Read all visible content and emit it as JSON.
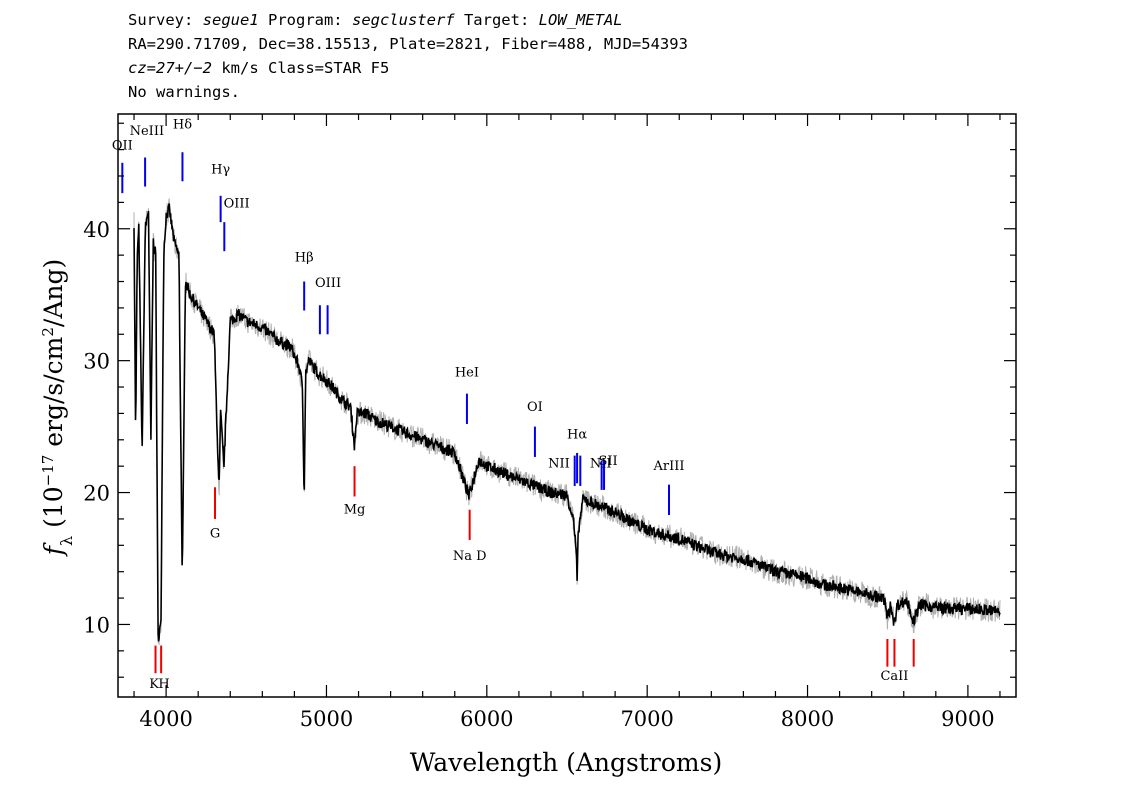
{
  "header": {
    "line1": {
      "survey_label": "Survey: ",
      "survey": "segue1",
      "program_label": " Program: ",
      "program": "segclusterf",
      "target_label": " Target: ",
      "target": "LOW_METAL"
    },
    "line2": "RA=290.71709, Dec=38.15513, Plate=2821, Fiber=488, MJD=54393",
    "line3": {
      "cz": "cz=27+/−2",
      "rest": " km/s Class=STAR F5"
    },
    "line4": "No warnings."
  },
  "colors": {
    "spectrum": "#000000",
    "error": "#b0b0b0",
    "emission": "#0000ee",
    "absorption": "#ee0000"
  },
  "chart_data": {
    "type": "line",
    "xlabel": "Wavelength (Angstroms)",
    "ylabel": "f_λ (10^-17 erg/s/cm^2/Ang)",
    "xlim": [
      3700,
      9300
    ],
    "ylim": [
      4.5,
      48.7
    ],
    "xticks": [
      4000,
      5000,
      6000,
      7000,
      8000,
      9000
    ],
    "yticks": [
      10,
      20,
      30,
      40
    ],
    "series": [
      {
        "x": [
          3800,
          3810,
          3820,
          3830,
          3850,
          3870,
          3890,
          3905,
          3920,
          3935,
          3950,
          3968,
          3985,
          4000,
          4020,
          4050,
          4080,
          4101,
          4120,
          4150,
          4200,
          4250,
          4300,
          4330,
          4340,
          4360,
          4400,
          4450,
          4500,
          4600,
          4700,
          4780,
          4830,
          4850,
          4861,
          4870,
          4890,
          4950,
          5000,
          5050,
          5100,
          5150,
          5175,
          5190,
          5250,
          5300,
          5400,
          5500,
          5600,
          5700,
          5800,
          5889,
          5895,
          5950,
          6000,
          6100,
          6200,
          6300,
          6400,
          6500,
          6540,
          6560,
          6563,
          6570,
          6600,
          6700,
          6800,
          6900,
          7000,
          7100,
          7200,
          7300,
          7400,
          7500,
          7600,
          7700,
          7800,
          7900,
          8000,
          8100,
          8200,
          8300,
          8400,
          8480,
          8498,
          8520,
          8542,
          8560,
          8620,
          8662,
          8700,
          8800,
          8900,
          9000,
          9100,
          9200
        ],
        "y": [
          40.5,
          24,
          38,
          40,
          23,
          40,
          41.5,
          24,
          39,
          38,
          9,
          10,
          38,
          41,
          41.5,
          39,
          38,
          13,
          36,
          35,
          34,
          33,
          32,
          20,
          26,
          22,
          33,
          33.5,
          33,
          32.5,
          31.5,
          31,
          29.5,
          28,
          19.5,
          29,
          30,
          29,
          28.5,
          27.8,
          27,
          26.5,
          23.5,
          26,
          26,
          25.5,
          25,
          24.5,
          24,
          23.5,
          23,
          19.7,
          20,
          22.5,
          22,
          21.5,
          21,
          20.5,
          20,
          19.8,
          18,
          15,
          13,
          17,
          19.5,
          19,
          18.5,
          17.8,
          17.2,
          16.8,
          16.5,
          16,
          15.5,
          15.2,
          15,
          14.5,
          14,
          13.8,
          13.5,
          13,
          12.8,
          12.5,
          12.2,
          11.9,
          10.5,
          11.5,
          10,
          11.5,
          11.8,
          10.2,
          11.5,
          11.3,
          11.2,
          11.2,
          11.1,
          11.0
        ]
      }
    ],
    "lines": [
      {
        "label": "OII",
        "x": 3727,
        "kind": "emission",
        "y0": 42.7,
        "y1": 45.0,
        "lx": 3727,
        "ly": 46.0
      },
      {
        "label": "NeIII",
        "x": 3869,
        "kind": "emission",
        "y0": 43.2,
        "y1": 45.4,
        "lx": 3880,
        "ly": 47.1
      },
      {
        "label": "Hδ",
        "x": 4102,
        "kind": "emission",
        "y0": 43.6,
        "y1": 45.8,
        "lx": 4102,
        "ly": 47.6
      },
      {
        "label": "Hγ",
        "x": 4340,
        "kind": "emission",
        "y0": 40.5,
        "y1": 42.5,
        "lx": 4340,
        "ly": 44.2
      },
      {
        "label": "OIII",
        "x": 4363,
        "kind": "emission",
        "y0": 38.3,
        "y1": 40.5,
        "lx": 4440,
        "ly": 41.6
      },
      {
        "label": "Hβ",
        "x": 4861,
        "kind": "emission",
        "y0": 33.8,
        "y1": 36.0,
        "lx": 4861,
        "ly": 37.5
      },
      {
        "label": "OIII",
        "x": 4959,
        "kind": "emission",
        "y0": 32.0,
        "y1": 34.2,
        "lx": 5010,
        "ly": 35.6
      },
      {
        "label": "",
        "x": 5007,
        "kind": "emission",
        "y0": 32.0,
        "y1": 34.2
      },
      {
        "label": "HeI",
        "x": 5876,
        "kind": "emission",
        "y0": 25.2,
        "y1": 27.5,
        "lx": 5876,
        "ly": 28.8
      },
      {
        "label": "OI",
        "x": 6300,
        "kind": "emission",
        "y0": 22.7,
        "y1": 25.0,
        "lx": 6300,
        "ly": 26.2
      },
      {
        "label": "NII",
        "x": 6548,
        "kind": "emission",
        "y0": 20.5,
        "y1": 22.8,
        "lx": 6450,
        "ly": 21.9
      },
      {
        "label": "Hα",
        "x": 6563,
        "kind": "emission",
        "y0": 20.7,
        "y1": 23.0,
        "lx": 6563,
        "ly": 24.1
      },
      {
        "label": "",
        "x": 6583,
        "kind": "emission",
        "y0": 20.5,
        "y1": 22.8
      },
      {
        "label": "NII",
        "x": 6716,
        "kind": "emission",
        "y0": 20.2,
        "y1": 22.4,
        "lx": 6710,
        "ly": 21.9
      },
      {
        "label": "SII",
        "x": 6731,
        "kind": "emission",
        "y0": 20.2,
        "y1": 22.4,
        "lx": 6756,
        "ly": 22.1
      },
      {
        "label": "ArIII",
        "x": 7136,
        "kind": "emission",
        "y0": 18.3,
        "y1": 20.6,
        "lx": 7136,
        "ly": 21.7
      },
      {
        "label": "G",
        "x": 4305,
        "kind": "absorption",
        "y0": 20.4,
        "y1": 18.0,
        "lx": 4305,
        "ly": 16.6
      },
      {
        "label": "Mg",
        "x": 5175,
        "kind": "absorption",
        "y0": 22.0,
        "y1": 19.7,
        "lx": 5175,
        "ly": 18.4
      },
      {
        "label": "Na D",
        "x": 5893,
        "kind": "absorption",
        "y0": 18.7,
        "y1": 16.4,
        "lx": 5893,
        "ly": 14.9
      },
      {
        "label": "K",
        "x": 3934,
        "kind": "absorption",
        "y0": 8.4,
        "y1": 6.3,
        "lx": 3925,
        "ly": 5.2
      },
      {
        "label": "H",
        "x": 3969,
        "kind": "absorption",
        "y0": 8.4,
        "y1": 6.3,
        "lx": 3987,
        "ly": 5.2
      },
      {
        "label": "CaII",
        "x": 8498,
        "kind": "absorption",
        "y0": 8.9,
        "y1": 6.8,
        "lx": 8542,
        "ly": 5.8
      },
      {
        "label": "",
        "x": 8542,
        "kind": "absorption",
        "y0": 8.9,
        "y1": 6.8
      },
      {
        "label": "",
        "x": 8662,
        "kind": "absorption",
        "y0": 8.9,
        "y1": 6.8
      }
    ]
  }
}
